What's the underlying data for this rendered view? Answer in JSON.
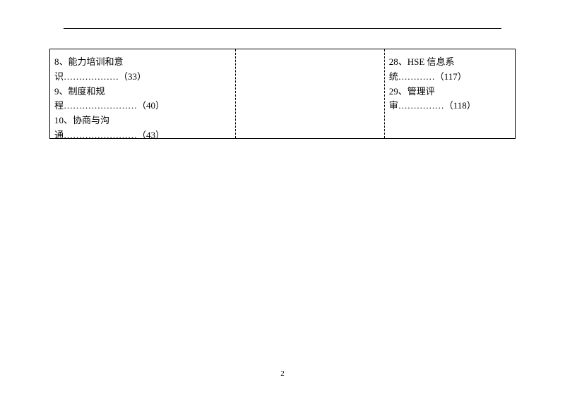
{
  "page": {
    "page_number": "2"
  },
  "table": {
    "col1": {
      "entry1_line1": "8、能力培训和意",
      "entry1_line2": "识………………（33）",
      "entry2_line1": "9、制度和规",
      "entry2_line2": "程……………………（40）",
      "entry3_line1": "10、协商与沟",
      "entry3_line2": "通……………………（43）"
    },
    "col2": {},
    "col3": {
      "entry1_line1": "28、HSE 信息系",
      "entry1_line2": "统…………（117）",
      "entry2_line1": "29、管理评",
      "entry2_line2": "审……………（118）"
    }
  }
}
